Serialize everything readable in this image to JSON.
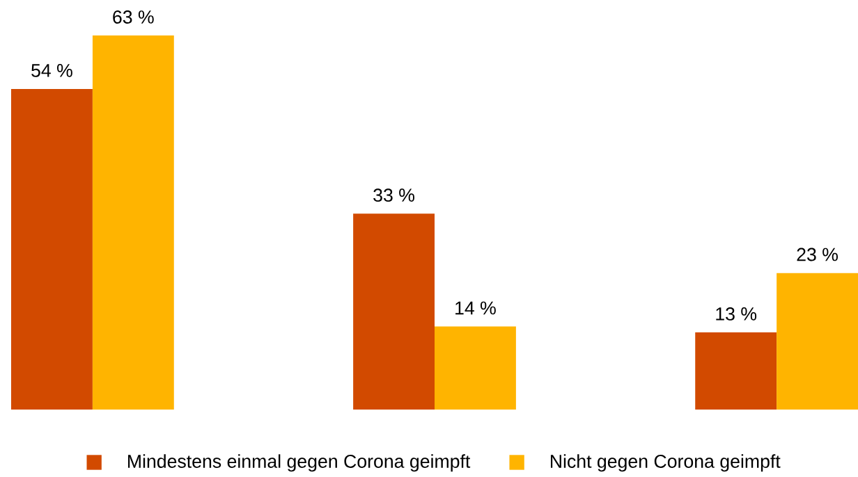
{
  "chart_data": {
    "type": "bar",
    "categories": [
      null,
      null,
      null
    ],
    "series": [
      {
        "name": "Mindestens einmal gegen Corona geimpft",
        "color": "#d24a00",
        "values": [
          54,
          33,
          13
        ],
        "value_labels": [
          "54 %",
          "33 %",
          "13 %"
        ]
      },
      {
        "name": "Nicht gegen Corona geimpft",
        "color": "#ffb400",
        "values": [
          63,
          14,
          23
        ],
        "value_labels": [
          "63 %",
          "14 %",
          "23 %"
        ]
      }
    ],
    "legend": "bottom"
  }
}
